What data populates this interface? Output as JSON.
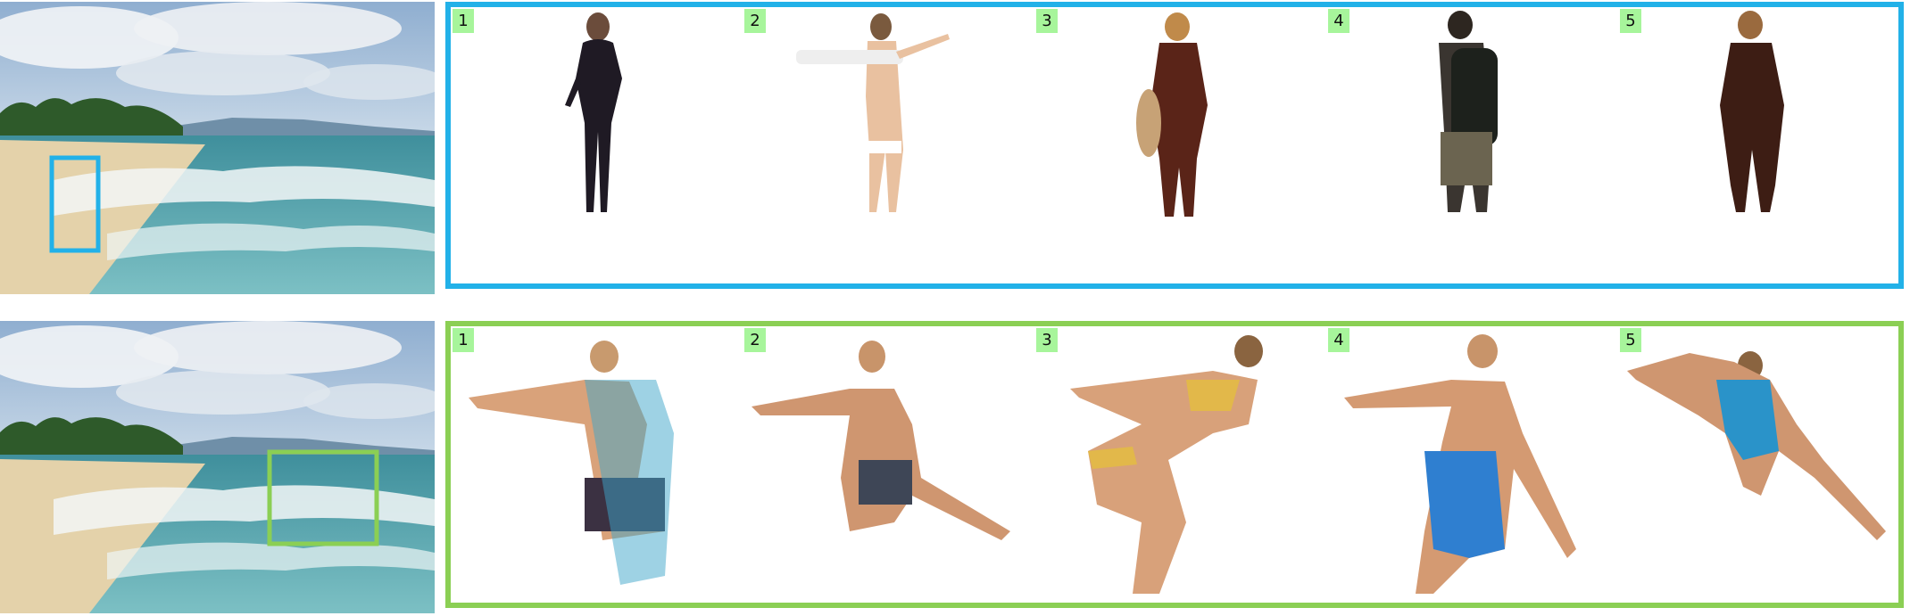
{
  "top_row": {
    "highlight_color": "#22b1e8",
    "items": [
      {
        "label": "1",
        "kind": "wetsuit-walker"
      },
      {
        "label": "2",
        "kind": "bikini-walker"
      },
      {
        "label": "3",
        "kind": "surfer-with-board"
      },
      {
        "label": "4",
        "kind": "backpack-walker"
      },
      {
        "label": "5",
        "kind": "wetsuit-standing"
      }
    ]
  },
  "bottom_row": {
    "highlight_color": "#8bcf54",
    "items": [
      {
        "label": "1",
        "kind": "surfer-crouch"
      },
      {
        "label": "2",
        "kind": "surfer-lean"
      },
      {
        "label": "3",
        "kind": "bikini-surfer"
      },
      {
        "label": "4",
        "kind": "surfer-blue-shorts"
      },
      {
        "label": "5",
        "kind": "surfer-dive"
      }
    ]
  },
  "badge_color": "#a7f59b"
}
